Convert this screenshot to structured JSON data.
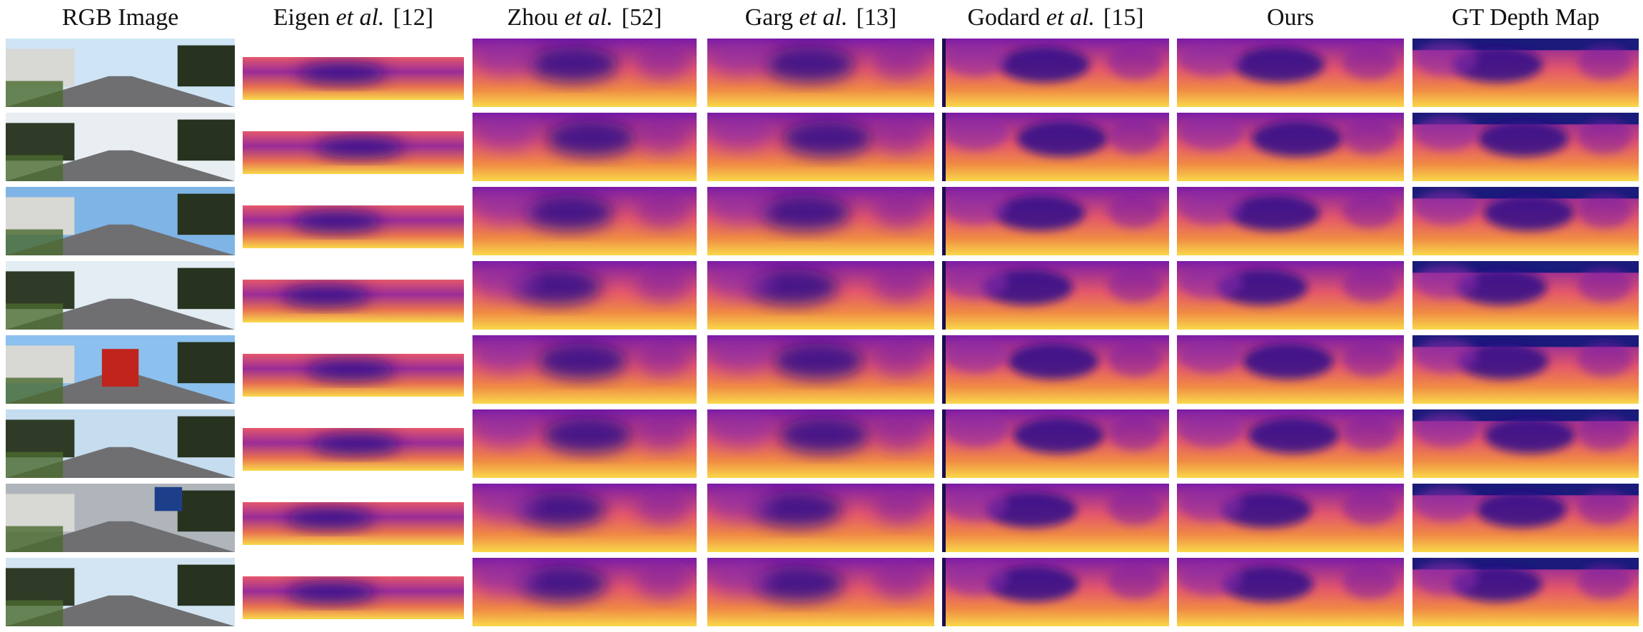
{
  "figure": {
    "columns": [
      {
        "id": "rgb",
        "label": "RGB Image",
        "label_italic": "",
        "citation": ""
      },
      {
        "id": "eigen",
        "label": "Eigen",
        "label_italic": "et al.",
        "citation": "[12]"
      },
      {
        "id": "zhou",
        "label": "Zhou",
        "label_italic": "et al.",
        "citation": "[52]"
      },
      {
        "id": "garg",
        "label": "Garg",
        "label_italic": "et al.",
        "citation": "[13]"
      },
      {
        "id": "godard",
        "label": "Godard",
        "label_italic": "et al.",
        "citation": "[15]"
      },
      {
        "id": "ours",
        "label": "Ours",
        "label_italic": "",
        "citation": ""
      },
      {
        "id": "gt",
        "label": "GT Depth Map",
        "label_italic": "",
        "citation": ""
      }
    ],
    "row_count": 8,
    "colors": {
      "depth_near": "#f9d84a",
      "depth_mid": "#e4576b",
      "depth_far": "#2d0c8a",
      "gt_sky": "#1a1b7a"
    }
  }
}
